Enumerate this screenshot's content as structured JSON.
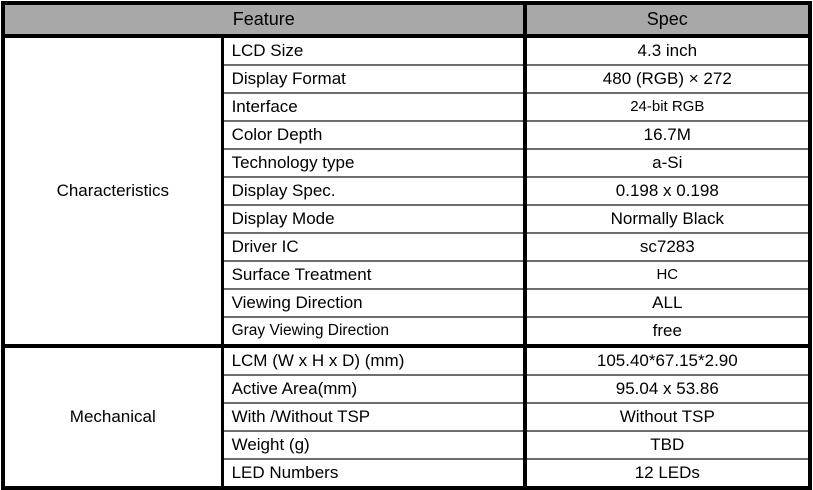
{
  "table": {
    "header": {
      "feature": "Feature",
      "spec": "Spec"
    },
    "sections": [
      {
        "group": "Characteristics",
        "rows": [
          {
            "feature": "LCD Size",
            "spec": "4.3 inch"
          },
          {
            "feature": "Display Format",
            "spec": "480 (RGB) × 272"
          },
          {
            "feature": "Interface",
            "spec": "24-bit RGB"
          },
          {
            "feature": "Color Depth",
            "spec": "16.7M"
          },
          {
            "feature": "Technology type",
            "spec": "a-Si"
          },
          {
            "feature": "Display Spec.",
            "spec": "0.198 x 0.198"
          },
          {
            "feature": "Display Mode",
            "spec": "Normally Black"
          },
          {
            "feature": "Driver IC",
            "spec": "sc7283"
          },
          {
            "feature": "Surface Treatment",
            "spec": "HC"
          },
          {
            "feature": "Viewing Direction",
            "spec": "ALL"
          },
          {
            "feature": "Gray Viewing Direction",
            "spec": "free"
          }
        ]
      },
      {
        "group": "Mechanical",
        "rows": [
          {
            "feature": "LCM (W x H x D) (mm)",
            "spec": "105.40*67.15*2.90"
          },
          {
            "feature": "Active Area(mm)",
            "spec": "95.04 x 53.86"
          },
          {
            "feature": "With /Without TSP",
            "spec": "Without TSP"
          },
          {
            "feature": "Weight (g)",
            "spec": "TBD"
          },
          {
            "feature": "LED Numbers",
            "spec": "12 LEDs"
          }
        ]
      }
    ]
  },
  "colors": {
    "header_bg": "#a8a8a8",
    "frame_border": "#000000",
    "row_separator": "#6e6e6e"
  }
}
